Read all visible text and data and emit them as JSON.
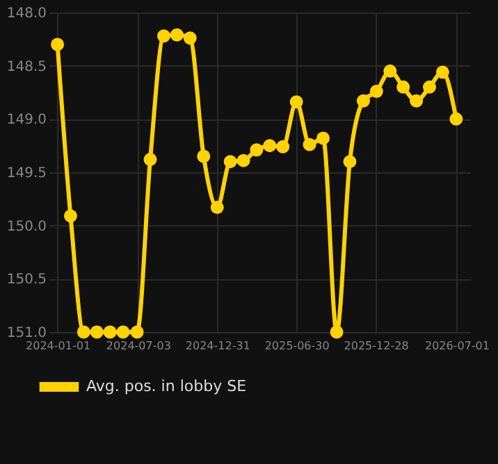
{
  "chart_data": {
    "type": "line",
    "x": [
      "2024-01-01",
      "2024-01-31",
      "2024-03-01",
      "2024-03-31",
      "2024-04-30",
      "2024-05-30",
      "2024-07-01",
      "2024-07-31",
      "2024-08-31",
      "2024-09-30",
      "2024-10-30",
      "2024-11-30",
      "2024-12-31",
      "2025-01-30",
      "2025-03-01",
      "2025-03-31",
      "2025-04-30",
      "2025-05-30",
      "2025-06-30",
      "2025-07-30",
      "2025-08-30",
      "2025-09-30",
      "2025-10-30",
      "2025-11-30",
      "2025-12-30",
      "2026-01-30",
      "2026-03-01",
      "2026-03-31",
      "2026-04-30",
      "2026-05-30",
      "2026-06-30"
    ],
    "series": [
      {
        "name": "Avg. pos. in lobby SE",
        "color": "#ffd200",
        "values": [
          148.3,
          149.91,
          151.0,
          151.0,
          151.0,
          151.0,
          151.0,
          149.38,
          148.22,
          148.21,
          148.24,
          149.35,
          149.83,
          149.4,
          149.39,
          149.29,
          149.25,
          149.26,
          148.84,
          149.24,
          149.18,
          151.0,
          149.4,
          148.83,
          148.74,
          148.55,
          148.7,
          148.83,
          148.7,
          148.56,
          149.0
        ]
      }
    ],
    "xlim": [
      "2023-12-12",
      "2026-08-01"
    ],
    "xticks": [
      {
        "value": "2024-01-01",
        "label": "2024-01-01"
      },
      {
        "value": "2024-07-03",
        "label": "2024-07-03"
      },
      {
        "value": "2024-12-31",
        "label": "2024-12-31"
      },
      {
        "value": "2025-06-30",
        "label": "2025-06-30"
      },
      {
        "value": "2025-12-28",
        "label": "2025-12-28"
      },
      {
        "value": "2026-07-01",
        "label": "2026-07-01"
      }
    ],
    "ylim": [
      151.0,
      148.0
    ],
    "yticks": [
      {
        "value": 148.0,
        "label": "148.0"
      },
      {
        "value": 148.5,
        "label": "148.5"
      },
      {
        "value": 149.0,
        "label": "149.0"
      },
      {
        "value": 149.5,
        "label": "149.5"
      },
      {
        "value": 150.0,
        "label": "150.0"
      },
      {
        "value": 150.5,
        "label": "150.5"
      },
      {
        "value": 151.0,
        "label": "151.0"
      }
    ],
    "grid": true,
    "legend": "bottom",
    "marker": "circle",
    "line_style": "solid"
  }
}
